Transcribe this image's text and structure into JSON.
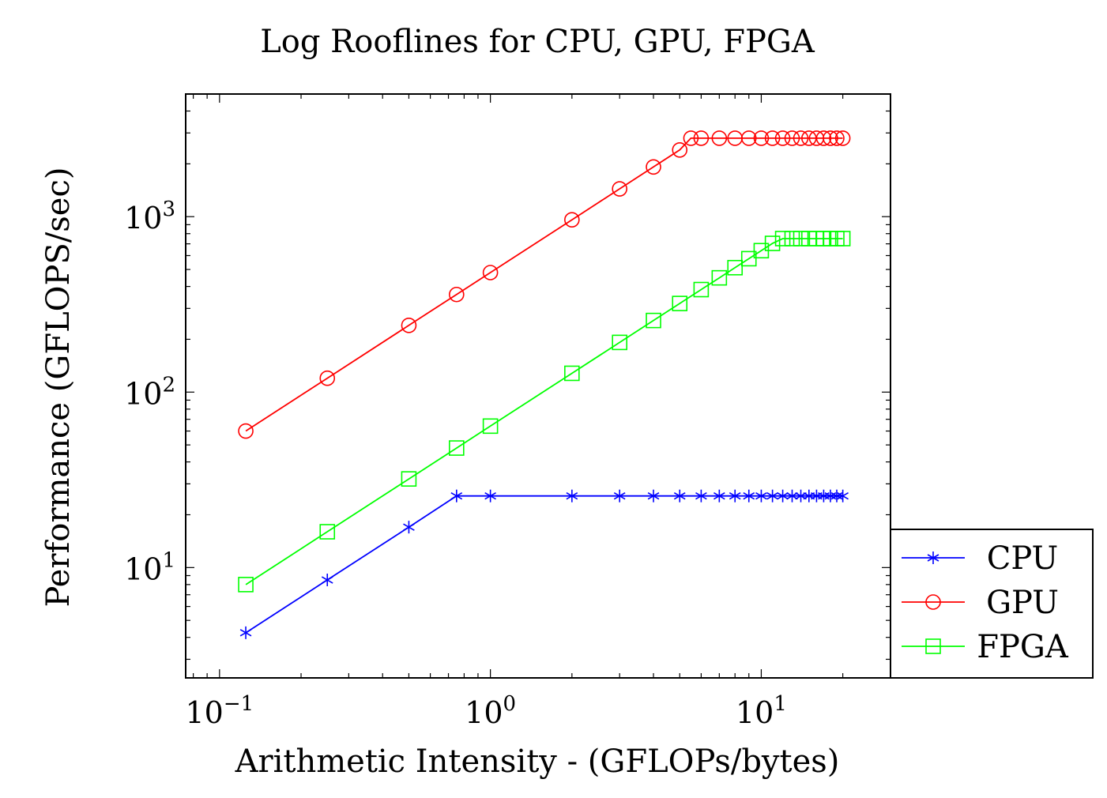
{
  "chart_data": {
    "type": "line",
    "title": "Log Rooflines for CPU, GPU, FPGA",
    "xlabel": "Arithmetic Intensity - (GFLOPs/bytes)",
    "ylabel": "Performance (GFLOPS/sec)",
    "xscale": "log",
    "yscale": "log",
    "xlim": [
      0.075,
      30
    ],
    "ylim": [
      2.35,
      5000
    ],
    "xticks": [
      {
        "value": 0.1,
        "base": "10",
        "exp": "−1"
      },
      {
        "value": 1,
        "base": "10",
        "exp": "0"
      },
      {
        "value": 10,
        "base": "10",
        "exp": "1"
      }
    ],
    "yticks": [
      {
        "value": 10,
        "base": "10",
        "exp": "1"
      },
      {
        "value": 100,
        "base": "10",
        "exp": "2"
      },
      {
        "value": 1000,
        "base": "10",
        "exp": "3"
      }
    ],
    "grid": false,
    "legend_position": "outside-right-bottom",
    "series": [
      {
        "name": "CPU",
        "color": "#0000ff",
        "marker": "asterisk",
        "x": [
          0.125,
          0.25,
          0.5,
          0.75,
          1,
          2,
          3,
          4,
          5,
          6,
          7,
          8,
          9,
          10,
          11,
          12,
          13,
          14,
          15,
          16,
          17,
          18,
          19,
          20
        ],
        "y": [
          4.25,
          8.5,
          17,
          25.6,
          25.6,
          25.6,
          25.6,
          25.6,
          25.6,
          25.6,
          25.6,
          25.6,
          25.6,
          25.6,
          25.6,
          25.6,
          25.6,
          25.6,
          25.6,
          25.6,
          25.6,
          25.6,
          25.6,
          25.6
        ]
      },
      {
        "name": "GPU",
        "color": "#ff0000",
        "marker": "circle",
        "x": [
          0.125,
          0.25,
          0.5,
          0.75,
          1,
          2,
          3,
          4,
          5,
          5.5,
          6,
          7,
          8,
          9,
          10,
          11,
          12,
          13,
          14,
          15,
          16,
          17,
          18,
          19,
          20
        ],
        "y": [
          60,
          120,
          240,
          360,
          480,
          960,
          1440,
          1920,
          2400,
          2800,
          2800,
          2800,
          2800,
          2800,
          2800,
          2800,
          2800,
          2800,
          2800,
          2800,
          2800,
          2800,
          2800,
          2800,
          2800
        ]
      },
      {
        "name": "FPGA",
        "color": "#00ff00",
        "marker": "square",
        "x": [
          0.125,
          0.25,
          0.5,
          0.75,
          1,
          2,
          3,
          4,
          5,
          6,
          7,
          8,
          9,
          10,
          11,
          12,
          13,
          14,
          15,
          16,
          17,
          18,
          19,
          20
        ],
        "y": [
          8,
          16,
          32,
          48,
          64,
          128,
          192,
          256,
          320,
          384,
          448,
          512,
          576,
          640,
          704,
          750,
          750,
          750,
          750,
          750,
          750,
          750,
          750,
          750
        ]
      }
    ]
  }
}
